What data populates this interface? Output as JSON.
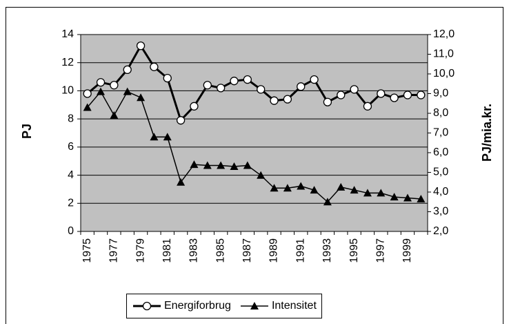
{
  "chart_data": {
    "type": "line",
    "categories": [
      "1975",
      null,
      "1977",
      null,
      "1979",
      null,
      "1981",
      null,
      "1983",
      null,
      "1985",
      null,
      "1987",
      null,
      "1989",
      null,
      "1991",
      null,
      "1993",
      null,
      "1995",
      null,
      "1997",
      null,
      "1999",
      null
    ],
    "y_label": "PJ",
    "y2_label": "PJ/mia.kr.",
    "series": [
      {
        "name": "Energiforbrug",
        "color": "#000000",
        "marker": "circle",
        "values": [
          9.8,
          10.6,
          10.4,
          11.5,
          13.2,
          11.7,
          10.9,
          7.9,
          8.9,
          10.4,
          10.2,
          10.7,
          10.8,
          10.1,
          9.3,
          9.4,
          10.3,
          10.8,
          9.2,
          9.7,
          10.1,
          8.9,
          9.8,
          9.5,
          9.7,
          9.7
        ]
      },
      {
        "name": "Intensitet",
        "color": "#000000",
        "marker": "triangle",
        "axis": "y2",
        "values": [
          8.3,
          9.1,
          7.9,
          9.1,
          8.8,
          6.8,
          6.8,
          4.5,
          5.4,
          5.35,
          5.35,
          5.3,
          5.35,
          4.85,
          4.2,
          4.2,
          4.3,
          4.1,
          3.5,
          4.25,
          4.1,
          3.95,
          3.95,
          3.75,
          3.7,
          3.65
        ]
      }
    ],
    "ylim": [
      0,
      14
    ],
    "yticks": [
      0,
      2,
      4,
      6,
      8,
      10,
      12,
      14
    ],
    "y2lim": [
      2,
      12
    ],
    "y2ticks": [
      {
        "value": 2,
        "label": "2,0"
      },
      {
        "value": 3,
        "label": "3,0"
      },
      {
        "value": 4,
        "label": "4,0"
      },
      {
        "value": 5,
        "label": "5,0"
      },
      {
        "value": 6,
        "label": "6,0"
      },
      {
        "value": 7,
        "label": "7,0"
      },
      {
        "value": 8,
        "label": "8,0"
      },
      {
        "value": 9,
        "label": "9,0"
      },
      {
        "value": 10,
        "label": "10,0"
      },
      {
        "value": 11,
        "label": "11,0"
      },
      {
        "value": 12,
        "label": "12,0"
      }
    ],
    "grid": true,
    "plot_color": "#c0c0c0",
    "legend": "bottom"
  }
}
